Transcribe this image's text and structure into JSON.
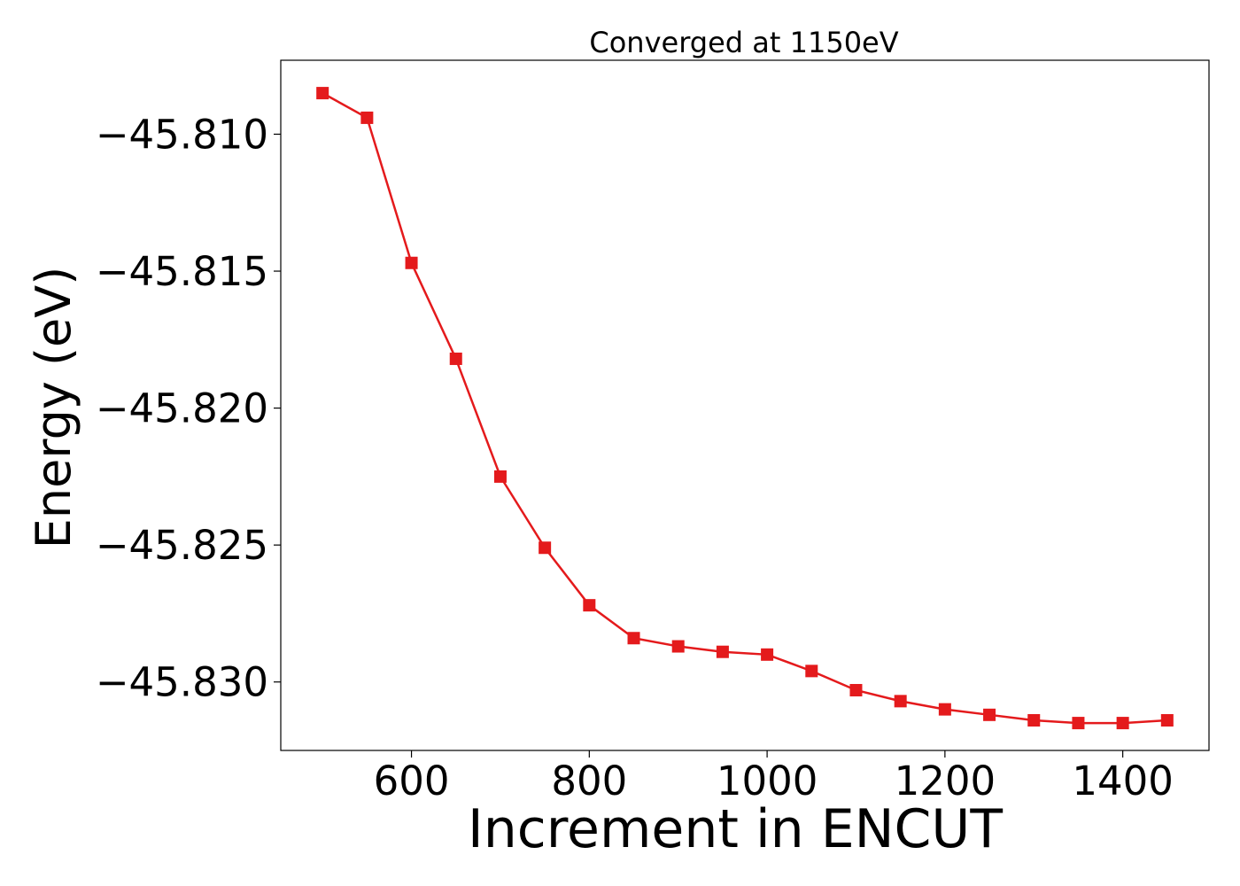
{
  "chart_data": {
    "type": "line",
    "title": "Converged at 1150eV",
    "xlabel": "Increment in ENCUT",
    "ylabel": "Energy (eV)",
    "xlim": [
      453,
      1497
    ],
    "ylim": [
      -45.8325,
      -45.8073
    ],
    "x_ticks": [
      600,
      800,
      1000,
      1200,
      1400
    ],
    "x_tick_labels": [
      "600",
      "800",
      "1000",
      "1200",
      "1400"
    ],
    "y_ticks": [
      -45.81,
      -45.815,
      -45.82,
      -45.825,
      -45.83
    ],
    "y_tick_labels": [
      "−45.810",
      "−45.815",
      "−45.820",
      "−45.825",
      "−45.830"
    ],
    "grid": false,
    "series": [
      {
        "color": "#e41a1c",
        "marker": "square",
        "x": [
          500,
          550,
          600,
          650,
          700,
          750,
          800,
          850,
          900,
          950,
          1000,
          1050,
          1100,
          1150,
          1200,
          1250,
          1300,
          1350,
          1400,
          1450
        ],
        "y": [
          -45.8085,
          -45.8094,
          -45.8147,
          -45.8182,
          -45.8225,
          -45.8251,
          -45.8272,
          -45.8284,
          -45.8287,
          -45.8289,
          -45.829,
          -45.8296,
          -45.8303,
          -45.8307,
          -45.831,
          -45.8312,
          -45.8314,
          -45.8315,
          -45.8315,
          -45.8314
        ]
      }
    ]
  }
}
